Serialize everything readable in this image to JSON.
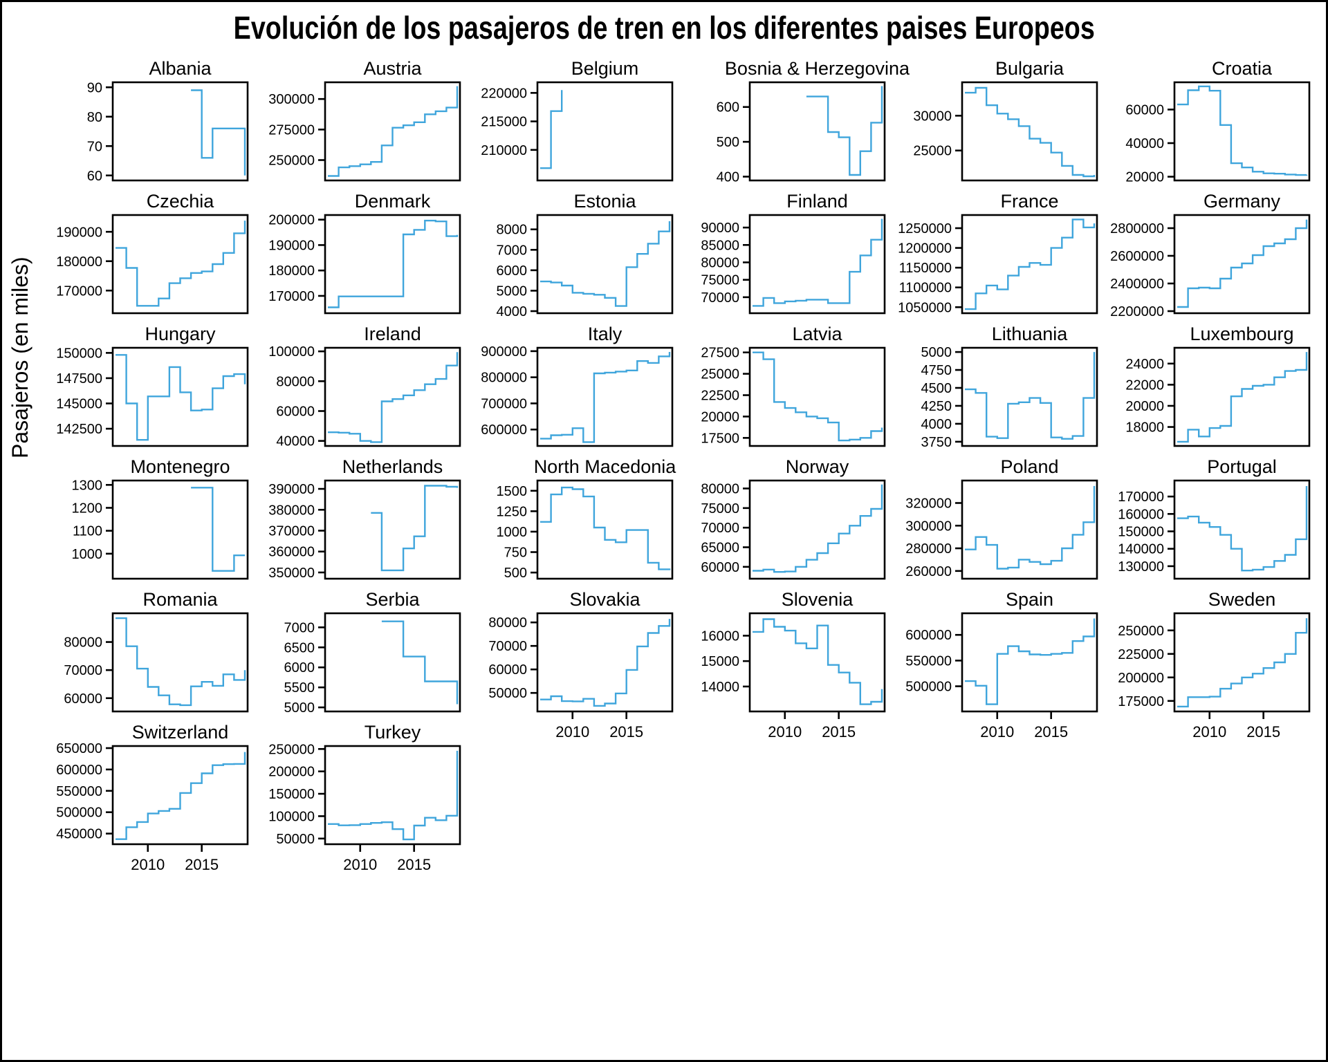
{
  "title": "Evolución de los pasajeros de tren en los diferentes paises Europeos",
  "ylabel": "Pasajeros (en miles)",
  "line_color": "#3FA5DC",
  "chart_data": {
    "type": "line",
    "style": "step",
    "x_label_ticks": [
      2010,
      2015
    ],
    "years": [
      2007,
      2008,
      2009,
      2010,
      2011,
      2012,
      2013,
      2014,
      2015,
      2016,
      2017,
      2018,
      2019
    ],
    "facets": [
      {
        "name": "Albania",
        "yticks": [
          60,
          70,
          80,
          90
        ],
        "ylim": [
          59,
          91
        ],
        "xaxis": false,
        "values": [
          null,
          null,
          null,
          null,
          null,
          null,
          null,
          89,
          66,
          76,
          76,
          76,
          60
        ]
      },
      {
        "name": "Austria",
        "yticks": [
          250000,
          275000,
          300000
        ],
        "ylim": [
          235000,
          312000
        ],
        "xaxis": false,
        "values": [
          237000,
          244000,
          245000,
          246500,
          248500,
          262000,
          276500,
          278500,
          281000,
          287500,
          290000,
          293000,
          310500
        ]
      },
      {
        "name": "Belgium",
        "yticks": [
          210000,
          215000,
          220000
        ],
        "ylim": [
          205000,
          221500
        ],
        "xaxis": false,
        "values": [
          206800,
          216800,
          220500,
          null,
          null,
          null,
          null,
          null,
          null,
          null,
          null,
          null,
          null
        ]
      },
      {
        "name": "Bosnia & Herzegovina",
        "yticks": [
          400,
          500,
          600
        ],
        "ylim": [
          395,
          665
        ],
        "xaxis": false,
        "values": [
          null,
          null,
          null,
          null,
          null,
          630,
          630,
          528,
          513,
          405,
          473,
          555,
          660
        ]
      },
      {
        "name": "Bulgaria",
        "yticks": [
          25000,
          30000
        ],
        "ylim": [
          21000,
          34500
        ],
        "xaxis": false,
        "values": [
          33300,
          34000,
          31500,
          30300,
          29500,
          28500,
          26700,
          26100,
          24700,
          22800,
          21500,
          21300,
          21500
        ]
      },
      {
        "name": "Croatia",
        "yticks": [
          20000,
          40000,
          60000
        ],
        "ylim": [
          19000,
          75000
        ],
        "xaxis": false,
        "values": [
          63000,
          71500,
          73800,
          71200,
          50800,
          28000,
          25500,
          23000,
          22000,
          21800,
          21300,
          21000,
          21200
        ]
      },
      {
        "name": "Czechia",
        "yticks": [
          170000,
          180000,
          190000
        ],
        "ylim": [
          163000,
          195000
        ],
        "xaxis": false,
        "values": [
          184500,
          177700,
          164800,
          164800,
          167300,
          172500,
          174200,
          176000,
          176500,
          179000,
          182800,
          189500,
          193800
        ]
      },
      {
        "name": "Denmark",
        "yticks": [
          170000,
          180000,
          190000,
          200000
        ],
        "ylim": [
          164000,
          201000
        ],
        "xaxis": false,
        "values": [
          165500,
          169800,
          169800,
          169800,
          169800,
          169800,
          169800,
          194200,
          196000,
          199600,
          199300,
          193500,
          194000
        ]
      },
      {
        "name": "Estonia",
        "yticks": [
          4000,
          5000,
          6000,
          7000,
          8000
        ],
        "ylim": [
          4000,
          8600
        ],
        "xaxis": false,
        "values": [
          5450,
          5400,
          5250,
          4900,
          4850,
          4800,
          4650,
          4250,
          6150,
          6800,
          7300,
          7900,
          8400
        ]
      },
      {
        "name": "Finland",
        "yticks": [
          70000,
          75000,
          80000,
          85000,
          90000
        ],
        "ylim": [
          66000,
          93000
        ],
        "xaxis": false,
        "values": [
          67500,
          69800,
          68300,
          68800,
          69000,
          69300,
          69300,
          68300,
          68300,
          77300,
          82000,
          86500,
          92500
        ]
      },
      {
        "name": "France",
        "yticks": [
          1050000,
          1100000,
          1150000,
          1200000,
          1250000
        ],
        "ylim": [
          1040000,
          1278000
        ],
        "xaxis": false,
        "values": [
          1045000,
          1085000,
          1105000,
          1095000,
          1130000,
          1152000,
          1162000,
          1157000,
          1200000,
          1226000,
          1272000,
          1252000,
          1262000
        ]
      },
      {
        "name": "Germany",
        "yticks": [
          2200000,
          2400000,
          2600000,
          2800000
        ],
        "ylim": [
          2200000,
          2880000
        ],
        "xaxis": false,
        "values": [
          2230000,
          2365000,
          2370000,
          2365000,
          2435000,
          2515000,
          2545000,
          2605000,
          2670000,
          2690000,
          2720000,
          2800000,
          2862000
        ]
      },
      {
        "name": "Hungary",
        "yticks": [
          142500,
          145000,
          147500,
          150000
        ],
        "ylim": [
          141000,
          150300
        ],
        "xaxis": false,
        "values": [
          149800,
          145000,
          141400,
          145700,
          145700,
          148600,
          146100,
          144300,
          144400,
          146500,
          147700,
          147900,
          146900
        ]
      },
      {
        "name": "Ireland",
        "yticks": [
          40000,
          60000,
          80000,
          100000
        ],
        "ylim": [
          38000,
          101000
        ],
        "xaxis": false,
        "values": [
          45800,
          45500,
          44800,
          40000,
          39200,
          66500,
          68000,
          70500,
          74000,
          78000,
          81500,
          90500,
          99500
        ]
      },
      {
        "name": "Italy",
        "yticks": [
          600000,
          700000,
          800000,
          900000
        ],
        "ylim": [
          545000,
          905000
        ],
        "xaxis": false,
        "values": [
          565000,
          578000,
          580000,
          605000,
          552000,
          815000,
          818000,
          822000,
          826000,
          862000,
          855000,
          880000,
          897000
        ]
      },
      {
        "name": "Latvia",
        "yticks": [
          17500,
          20000,
          22500,
          25000,
          27500
        ],
        "ylim": [
          16800,
          27800
        ],
        "xaxis": false,
        "values": [
          27500,
          26700,
          21700,
          21000,
          20500,
          20000,
          19800,
          19300,
          17200,
          17300,
          17500,
          18300,
          18700
        ]
      },
      {
        "name": "Lithuania",
        "yticks": [
          3750,
          4000,
          4250,
          4500,
          4750,
          5000
        ],
        "ylim": [
          3720,
          5030
        ],
        "xaxis": false,
        "values": [
          4480,
          4430,
          3820,
          3800,
          4280,
          4300,
          4360,
          4290,
          3810,
          3790,
          3830,
          4360,
          5000
        ]
      },
      {
        "name": "Luxembourg",
        "yticks": [
          18000,
          20000,
          22000,
          24000
        ],
        "ylim": [
          16400,
          25300
        ],
        "xaxis": false,
        "values": [
          16600,
          17750,
          17100,
          17900,
          18100,
          20900,
          21600,
          21900,
          22000,
          22700,
          23300,
          23400,
          25100
        ]
      },
      {
        "name": "Montenegro",
        "yticks": [
          1000,
          1100,
          1200,
          1300
        ],
        "ylim": [
          900,
          1310
        ],
        "xaxis": false,
        "values": [
          null,
          null,
          null,
          null,
          null,
          null,
          null,
          1288,
          1288,
          925,
          925,
          993,
          993
        ]
      },
      {
        "name": "Netherlands",
        "yticks": [
          350000,
          360000,
          370000,
          380000,
          390000
        ],
        "ylim": [
          348000,
          393000
        ],
        "xaxis": false,
        "values": [
          null,
          null,
          null,
          null,
          378500,
          351000,
          351000,
          361500,
          367300,
          391500,
          391500,
          391000,
          390500
        ]
      },
      {
        "name": "North Macedonia",
        "yticks": [
          500,
          750,
          1000,
          1250,
          1500
        ],
        "ylim": [
          450,
          1600
        ],
        "xaxis": false,
        "values": [
          1120,
          1455,
          1540,
          1520,
          1430,
          1050,
          900,
          870,
          1020,
          1020,
          620,
          540,
          550
        ]
      },
      {
        "name": "Norway",
        "yticks": [
          60000,
          65000,
          70000,
          75000,
          80000
        ],
        "ylim": [
          57500,
          81500
        ],
        "xaxis": false,
        "values": [
          59000,
          59300,
          58700,
          58800,
          60000,
          61800,
          63500,
          66000,
          68500,
          70500,
          73000,
          74800,
          81000
        ]
      },
      {
        "name": "Poland",
        "yticks": [
          260000,
          280000,
          300000,
          320000
        ],
        "ylim": [
          255000,
          338000
        ],
        "xaxis": false,
        "values": [
          279000,
          290000,
          283000,
          262000,
          263000,
          270000,
          268000,
          266000,
          269000,
          280000,
          292000,
          303000,
          335000
        ]
      },
      {
        "name": "Portugal",
        "yticks": [
          130000,
          140000,
          150000,
          160000,
          170000
        ],
        "ylim": [
          124000,
          178000
        ],
        "xaxis": false,
        "values": [
          157500,
          158500,
          155000,
          152500,
          148000,
          140000,
          127500,
          128000,
          129500,
          133000,
          136500,
          145500,
          176000
        ]
      },
      {
        "name": "Romania",
        "yticks": [
          60000,
          70000,
          80000
        ],
        "ylim": [
          56000,
          89500
        ],
        "xaxis": false,
        "values": [
          88500,
          78500,
          70500,
          64000,
          61000,
          57800,
          57500,
          64200,
          65800,
          64400,
          68500,
          66500,
          70000
        ]
      },
      {
        "name": "Serbia",
        "yticks": [
          5000,
          5500,
          6000,
          6500,
          7000
        ],
        "ylim": [
          4950,
          7300
        ],
        "xaxis": false,
        "values": [
          null,
          null,
          null,
          null,
          null,
          7150,
          7150,
          6270,
          6270,
          5650,
          5650,
          5650,
          5080
        ]
      },
      {
        "name": "Slovakia",
        "yticks": [
          50000,
          60000,
          70000,
          80000
        ],
        "ylim": [
          43000,
          83000
        ],
        "xaxis": true,
        "values": [
          47200,
          48600,
          46500,
          46400,
          47500,
          44500,
          45500,
          49800,
          59800,
          69800,
          75500,
          78500,
          81500
        ]
      },
      {
        "name": "Slovenia",
        "yticks": [
          14000,
          15000,
          16000
        ],
        "ylim": [
          13100,
          16800
        ],
        "xaxis": true,
        "values": [
          16150,
          16650,
          16350,
          16200,
          15700,
          15500,
          16400,
          14850,
          14550,
          14150,
          13300,
          13400,
          13900
        ]
      },
      {
        "name": "Spain",
        "yticks": [
          500000,
          550000,
          600000
        ],
        "ylim": [
          455000,
          638000
        ],
        "xaxis": true,
        "values": [
          510000,
          501000,
          465000,
          563000,
          578000,
          568000,
          562000,
          561000,
          563000,
          565000,
          588000,
          597000,
          632000
        ]
      },
      {
        "name": "Sweden",
        "yticks": [
          175000,
          200000,
          225000,
          250000
        ],
        "ylim": [
          166000,
          266000
        ],
        "xaxis": true,
        "values": [
          169000,
          179000,
          179000,
          179500,
          188000,
          193500,
          200000,
          204000,
          210000,
          216000,
          225000,
          247500,
          263000
        ]
      },
      {
        "name": "Switzerland",
        "yticks": [
          450000,
          500000,
          550000,
          600000,
          650000
        ],
        "ylim": [
          430000,
          650000
        ],
        "xaxis": true,
        "values": [
          437000,
          465000,
          477000,
          497000,
          503000,
          508000,
          545000,
          568000,
          591000,
          610000,
          612500,
          613000,
          641000
        ]
      },
      {
        "name": "Turkey",
        "yticks": [
          50000,
          100000,
          150000,
          200000,
          250000
        ],
        "ylim": [
          42000,
          252000
        ],
        "xaxis": true,
        "values": [
          82500,
          79500,
          80000,
          82500,
          85000,
          86500,
          71000,
          48000,
          79000,
          96500,
          91000,
          101000,
          246000
        ]
      }
    ]
  }
}
